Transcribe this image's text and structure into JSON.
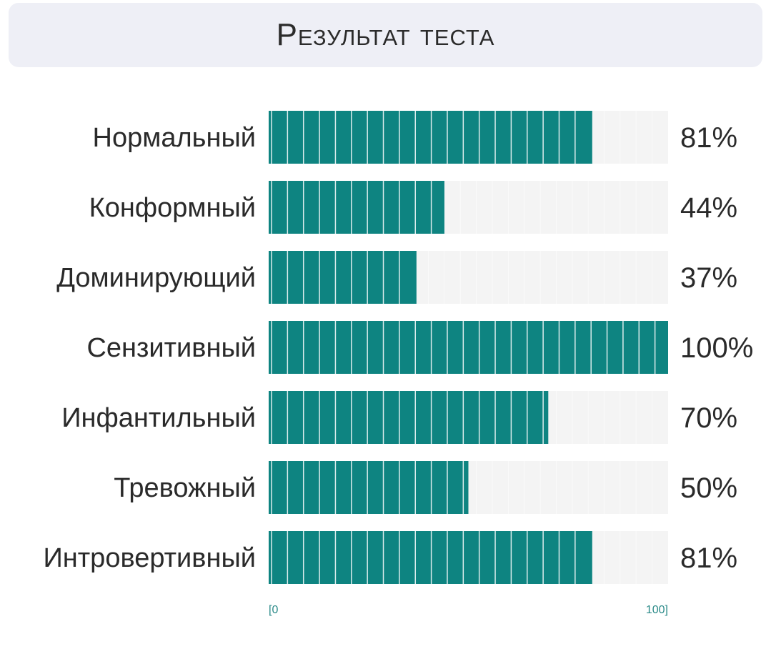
{
  "title": "Результат теста",
  "chart_data": {
    "type": "bar",
    "orientation": "horizontal",
    "categories": [
      "Нормальный",
      "Конформный",
      "Доминирующий",
      "Сензитивный",
      "Инфантильный",
      "Тревожный",
      "Интровертивный"
    ],
    "values": [
      81,
      44,
      37,
      100,
      70,
      50,
      81
    ],
    "value_labels": [
      "81%",
      "44%",
      "37%",
      "100%",
      "70%",
      "50%",
      "81%"
    ],
    "xlim": [
      0,
      100
    ],
    "x_tick_labels": [
      "[0",
      "100]"
    ],
    "segments": 25,
    "colors": {
      "fill": "#0e8481",
      "track": "#f4f4f4",
      "segment_line": "#ffffff",
      "tick": "#2a8a88"
    },
    "grid": false,
    "legend": "none"
  }
}
